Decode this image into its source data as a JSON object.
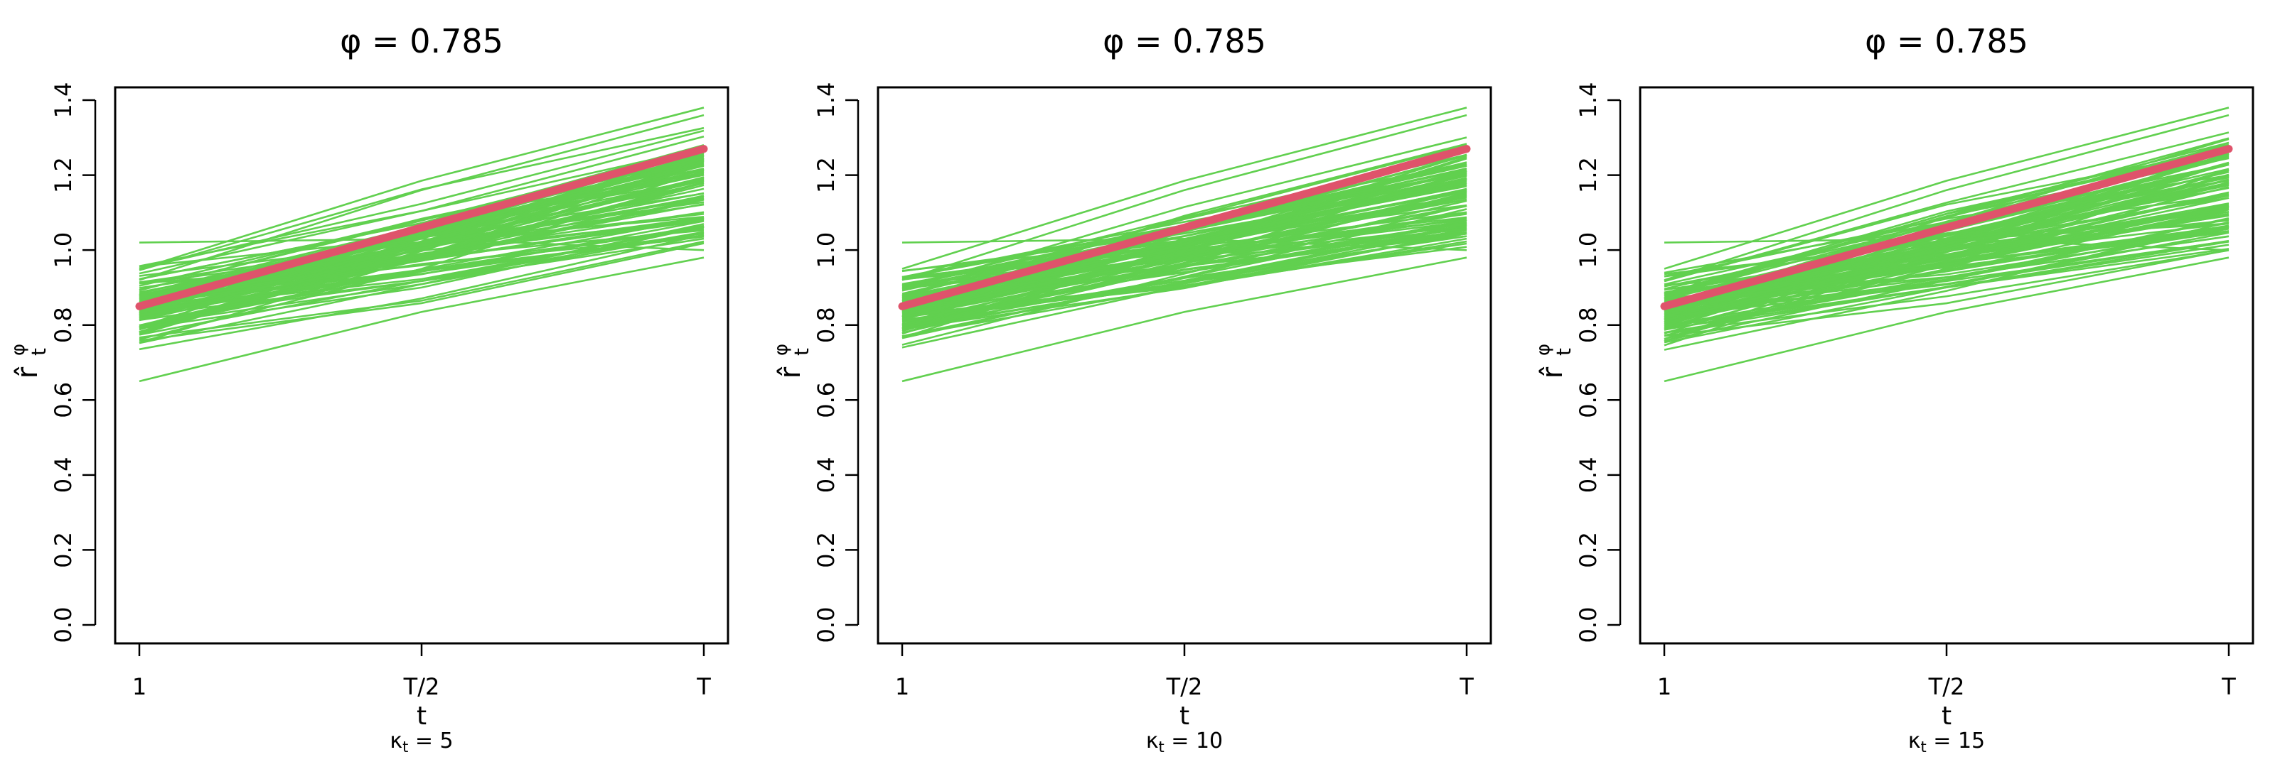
{
  "figure": {
    "panels": [
      {
        "title": "φ = 0.785",
        "xlabel": "t",
        "caption_base": "κ",
        "caption_sub": "t",
        "caption_rest": " = 5",
        "ylabel_main": "r̂",
        "ylabel_sup": "φ",
        "ylabel_sub": "t"
      },
      {
        "title": "φ = 0.785",
        "xlabel": "t",
        "caption_base": "κ",
        "caption_sub": "t",
        "caption_rest": " = 10",
        "ylabel_main": "r̂",
        "ylabel_sup": "φ",
        "ylabel_sub": "t"
      },
      {
        "title": "φ = 0.785",
        "xlabel": "t",
        "caption_base": "κ",
        "caption_sub": "t",
        "caption_rest": " = 15",
        "ylabel_main": "r̂",
        "ylabel_sup": "φ",
        "ylabel_sub": "t"
      }
    ]
  },
  "chart_data": [
    {
      "type": "line",
      "title": "φ = 0.785",
      "xlabel": "t",
      "ylabel": "r̂ₜ^φ",
      "caption": "κₜ = 5",
      "x_ticks": [
        "1",
        "T/2",
        "T"
      ],
      "y_ticks": [
        "0.0",
        "0.2",
        "0.4",
        "0.6",
        "0.8",
        "1.0",
        "1.2",
        "1.4"
      ],
      "ylim": [
        0,
        1.4
      ],
      "colors": {
        "simulated": "#61D04F",
        "true": "#DF536B"
      },
      "true_line": {
        "x": [
          "1",
          "T/2",
          "T"
        ],
        "y": [
          0.85,
          1.06,
          1.27
        ]
      },
      "simulated_bundle": {
        "count": 100,
        "start_range": [
          0.65,
          1.02
        ],
        "end_range": [
          0.95,
          1.38
        ]
      }
    },
    {
      "type": "line",
      "title": "φ = 0.785",
      "xlabel": "t",
      "ylabel": "r̂ₜ^φ",
      "caption": "κₜ = 10",
      "x_ticks": [
        "1",
        "T/2",
        "T"
      ],
      "y_ticks": [
        "0.0",
        "0.2",
        "0.4",
        "0.6",
        "0.8",
        "1.0",
        "1.2",
        "1.4"
      ],
      "ylim": [
        0,
        1.4
      ],
      "colors": {
        "simulated": "#61D04F",
        "true": "#DF536B"
      },
      "true_line": {
        "x": [
          "1",
          "T/2",
          "T"
        ],
        "y": [
          0.85,
          1.06,
          1.27
        ]
      },
      "simulated_bundle": {
        "count": 100,
        "start_range": [
          0.65,
          1.02
        ],
        "end_range": [
          0.95,
          1.38
        ]
      }
    },
    {
      "type": "line",
      "title": "φ = 0.785",
      "xlabel": "t",
      "ylabel": "r̂ₜ^φ",
      "caption": "κₜ = 15",
      "x_ticks": [
        "1",
        "T/2",
        "T"
      ],
      "y_ticks": [
        "0.0",
        "0.2",
        "0.4",
        "0.6",
        "0.8",
        "1.0",
        "1.2",
        "1.4"
      ],
      "ylim": [
        0,
        1.4
      ],
      "colors": {
        "simulated": "#61D04F",
        "true": "#DF536B"
      },
      "true_line": {
        "x": [
          "1",
          "T/2",
          "T"
        ],
        "y": [
          0.85,
          1.06,
          1.27
        ]
      },
      "simulated_bundle": {
        "count": 100,
        "start_range": [
          0.65,
          1.02
        ],
        "end_range": [
          0.95,
          1.38
        ]
      }
    }
  ]
}
